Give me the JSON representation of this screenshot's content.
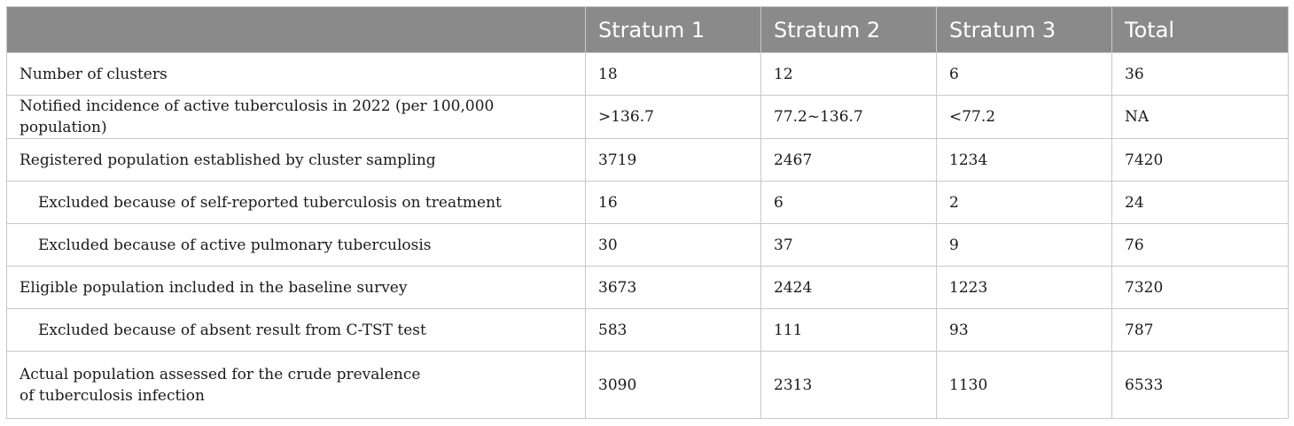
{
  "table": {
    "headers": [
      "",
      "Stratum 1",
      "Stratum 2",
      "Stratum 3",
      "Total"
    ],
    "rows": [
      {
        "label": "Number of clusters",
        "values": [
          "18",
          "12",
          "6",
          "36"
        ]
      },
      {
        "label": "Notified incidence of active tuberculosis in 2022 (per 100,000 population)",
        "values": [
          ">136.7",
          "77.2~136.7",
          "<77.2",
          "NA"
        ]
      },
      {
        "label": "Registered population established by cluster sampling",
        "values": [
          "3719",
          "2467",
          "1234",
          "7420"
        ]
      },
      {
        "label": "Excluded because of self-reported tuberculosis on treatment",
        "values": [
          "16",
          "6",
          "2",
          "24"
        ]
      },
      {
        "label": "Excluded because of active pulmonary tuberculosis",
        "values": [
          "30",
          "37",
          "9",
          "76"
        ]
      },
      {
        "label": "Eligible population included in the baseline survey",
        "values": [
          "3673",
          "2424",
          "1223",
          "7320"
        ]
      },
      {
        "label": "Excluded because of absent result from C-TST test",
        "values": [
          "583",
          "111",
          "93",
          "787"
        ]
      },
      {
        "label": "Actual population assessed for the crude prevalence of tuberculosis infection",
        "values": [
          "3090",
          "2313",
          "1130",
          "6533"
        ]
      }
    ]
  }
}
